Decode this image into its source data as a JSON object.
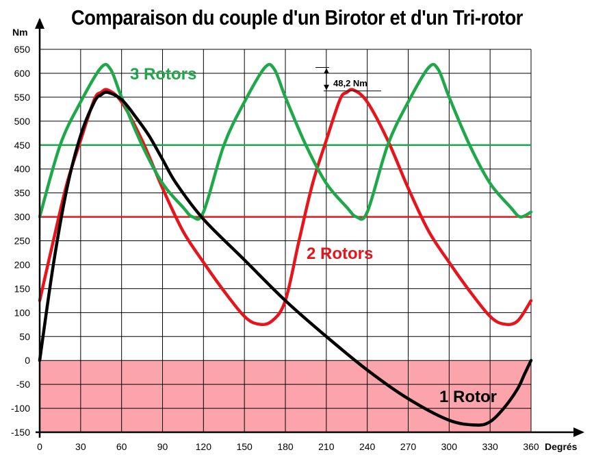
{
  "chart_data": {
    "type": "line",
    "title": "Comparaison du couple d'un Birotor et d'un Tri-rotor",
    "ylabel": "Nm",
    "xlabel": "Degrés",
    "xlim": [
      0,
      360
    ],
    "ylim": [
      -150,
      650
    ],
    "xticks": [
      0,
      30,
      60,
      90,
      120,
      150,
      180,
      210,
      240,
      270,
      300,
      330,
      360
    ],
    "yticks": [
      -150,
      -100,
      -50,
      0,
      50,
      100,
      150,
      200,
      250,
      300,
      350,
      400,
      450,
      500,
      550,
      600,
      650
    ],
    "grid": true,
    "negative_region_color": "#fca4ac",
    "series": [
      {
        "name": "1 Rotor",
        "color": "#000000",
        "x": [
          0,
          10,
          20,
          30,
          40,
          45,
          50,
          60,
          70,
          80,
          90,
          100,
          120,
          150,
          180,
          210,
          240,
          270,
          300,
          320,
          330,
          340,
          350,
          355,
          360
        ],
        "y": [
          0,
          200,
          360,
          470,
          540,
          555,
          560,
          545,
          510,
          470,
          420,
          370,
          295,
          210,
          125,
          50,
          -20,
          -80,
          -125,
          -135,
          -128,
          -100,
          -60,
          -30,
          0
        ]
      },
      {
        "name": "2 Rotors",
        "color": "#e8141c",
        "x": [
          0,
          10,
          20,
          30,
          40,
          45,
          50,
          60,
          75,
          90,
          105,
          120,
          135,
          150,
          160,
          170,
          180,
          190,
          200,
          210,
          220,
          225,
          230,
          240,
          255,
          270,
          285,
          300,
          315,
          330,
          340,
          350,
          360
        ],
        "y": [
          125,
          250,
          370,
          460,
          545,
          560,
          565,
          540,
          460,
          360,
          270,
          205,
          145,
          92,
          76,
          82,
          125,
          250,
          370,
          460,
          545,
          560,
          565,
          540,
          460,
          360,
          270,
          205,
          145,
          92,
          76,
          82,
          125
        ]
      },
      {
        "name": "3 Rotors",
        "color": "#1ea84a",
        "x": [
          0,
          15,
          30,
          45,
          52,
          60,
          75,
          90,
          105,
          112,
          120,
          135,
          150,
          165,
          172,
          180,
          195,
          210,
          225,
          232,
          240,
          255,
          270,
          285,
          292,
          300,
          315,
          330,
          345,
          352,
          360
        ],
        "y": [
          300,
          450,
          540,
          612,
          608,
          550,
          450,
          370,
          320,
          300,
          310,
          450,
          540,
          612,
          608,
          550,
          450,
          370,
          320,
          300,
          310,
          450,
          540,
          612,
          608,
          550,
          450,
          370,
          320,
          300,
          310
        ]
      }
    ],
    "reference_lines": [
      {
        "y": 450,
        "color": "#1ea84a"
      },
      {
        "y": 300,
        "color": "#e8141c"
      }
    ],
    "annotations": [
      {
        "text": "48,2 Nm",
        "x": 180,
        "y": 600
      }
    ]
  }
}
